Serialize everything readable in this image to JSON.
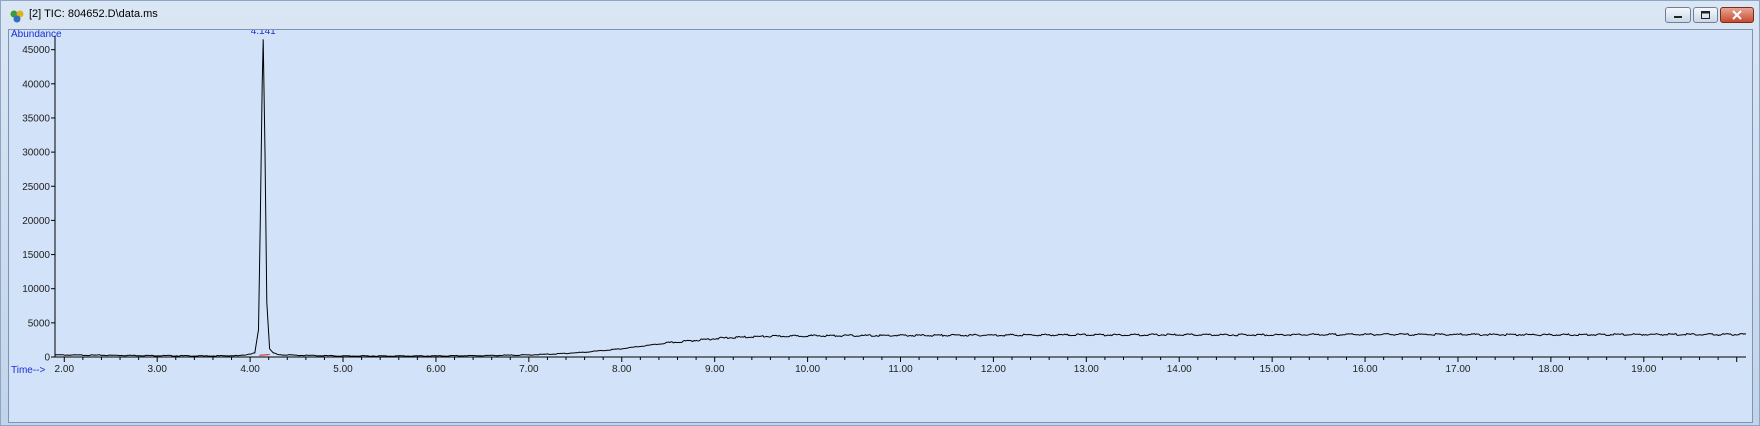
{
  "window": {
    "title": "[2] TIC: 804652.D\\data.ms",
    "icon": "chromatogram-app-icon",
    "controls": [
      "minimize",
      "maximize",
      "close"
    ]
  },
  "colors": {
    "plot_bg": "#d2e2f8",
    "trace": "#000000",
    "axis_caption": "#1a2fd0",
    "baseline_marker": "#d02020"
  },
  "chart_data": {
    "type": "line",
    "xlabel": "Time-->",
    "ylabel": "Abundance",
    "xlim": [
      1.9,
      20.1
    ],
    "ylim": [
      0,
      47000
    ],
    "xticks": [
      2.0,
      3.0,
      4.0,
      5.0,
      6.0,
      7.0,
      8.0,
      9.0,
      10.0,
      11.0,
      12.0,
      13.0,
      14.0,
      15.0,
      16.0,
      17.0,
      18.0,
      19.0
    ],
    "xtick_labels": [
      "2.00",
      "3.00",
      "4.00",
      "5.00",
      "6.00",
      "7.00",
      "8.00",
      "9.00",
      "10.00",
      "11.00",
      "12.00",
      "13.00",
      "14.00",
      "15.00",
      "16.00",
      "17.00",
      "18.00",
      "19.00"
    ],
    "yticks": [
      0,
      5000,
      10000,
      15000,
      20000,
      25000,
      30000,
      35000,
      40000,
      45000
    ],
    "ytick_labels": [
      "0",
      "5000",
      "10000",
      "15000",
      "20000",
      "25000",
      "30000",
      "35000",
      "40000",
      "45000"
    ],
    "grid": false,
    "annotations": [
      {
        "text": "4.141",
        "x": 4.141,
        "y": 47000
      }
    ],
    "series": [
      {
        "x": [
          1.9,
          2.5,
          3.0,
          3.5,
          3.9,
          4.05,
          4.09,
          4.11,
          4.13,
          4.141,
          4.16,
          4.18,
          4.21,
          4.25,
          4.3,
          4.5,
          5.0,
          5.5,
          6.0,
          6.5,
          7.0,
          7.3,
          7.6,
          7.8,
          8.0,
          8.2,
          8.4,
          8.6,
          8.8,
          9.0,
          9.2,
          9.5,
          10.0,
          11.0,
          12.0,
          13.0,
          14.0,
          15.0,
          16.0,
          17.0,
          18.0,
          19.0,
          20.1
        ],
        "y": [
          300,
          250,
          200,
          150,
          200,
          600,
          4000,
          20000,
          40000,
          46500,
          30000,
          8000,
          1200,
          600,
          350,
          250,
          150,
          150,
          150,
          200,
          300,
          450,
          700,
          950,
          1200,
          1550,
          1900,
          2200,
          2450,
          2700,
          2850,
          3000,
          3100,
          3150,
          3200,
          3250,
          3250,
          3250,
          3300,
          3300,
          3250,
          3300,
          3300
        ]
      }
    ]
  }
}
